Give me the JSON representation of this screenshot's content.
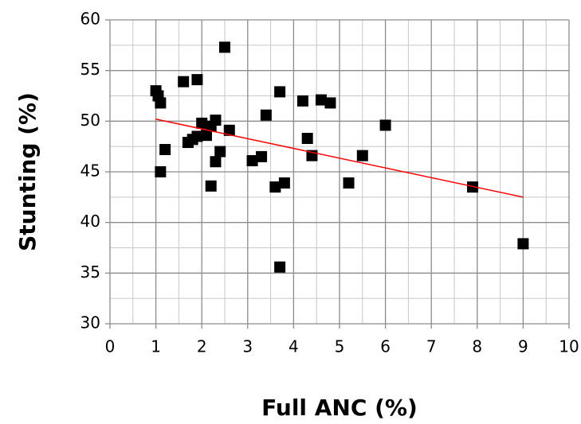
{
  "chart_data": {
    "type": "scatter",
    "xlabel": "Full ANC (%)",
    "ylabel": "Stunting (%)",
    "series": [
      {
        "color": "#000000",
        "x": [
          1.0,
          1.05,
          1.1,
          1.1,
          1.2,
          1.6,
          1.7,
          1.8,
          1.9,
          1.9,
          2.0,
          2.1,
          2.2,
          2.2,
          2.3,
          2.3,
          2.4,
          2.5,
          2.6,
          3.1,
          3.3,
          3.4,
          3.6,
          3.7,
          3.7,
          3.8,
          4.2,
          4.3,
          4.4,
          4.6,
          4.8,
          5.2,
          5.5,
          6.0,
          7.9,
          9.0
        ],
        "values": [
          53.0,
          52.5,
          51.8,
          45.0,
          47.2,
          53.9,
          47.9,
          48.2,
          54.1,
          48.5,
          49.8,
          48.6,
          49.5,
          43.6,
          50.1,
          46.0,
          47.0,
          57.3,
          49.1,
          46.1,
          46.5,
          50.6,
          43.5,
          52.9,
          35.6,
          43.9,
          52.0,
          48.3,
          46.6,
          52.1,
          51.8,
          43.9,
          46.6,
          49.6,
          43.5,
          37.9
        ]
      }
    ],
    "trendline": {
      "color": "#ff0000",
      "x": [
        1,
        9
      ],
      "values": [
        50.2,
        42.5
      ]
    },
    "xlim": [
      0,
      10
    ],
    "xticks": [
      0,
      1,
      2,
      3,
      4,
      5,
      6,
      7,
      8,
      9,
      10
    ],
    "ylim": [
      30,
      60
    ],
    "yticks": [
      30,
      35,
      40,
      45,
      50,
      55,
      60
    ],
    "grid": true
  }
}
